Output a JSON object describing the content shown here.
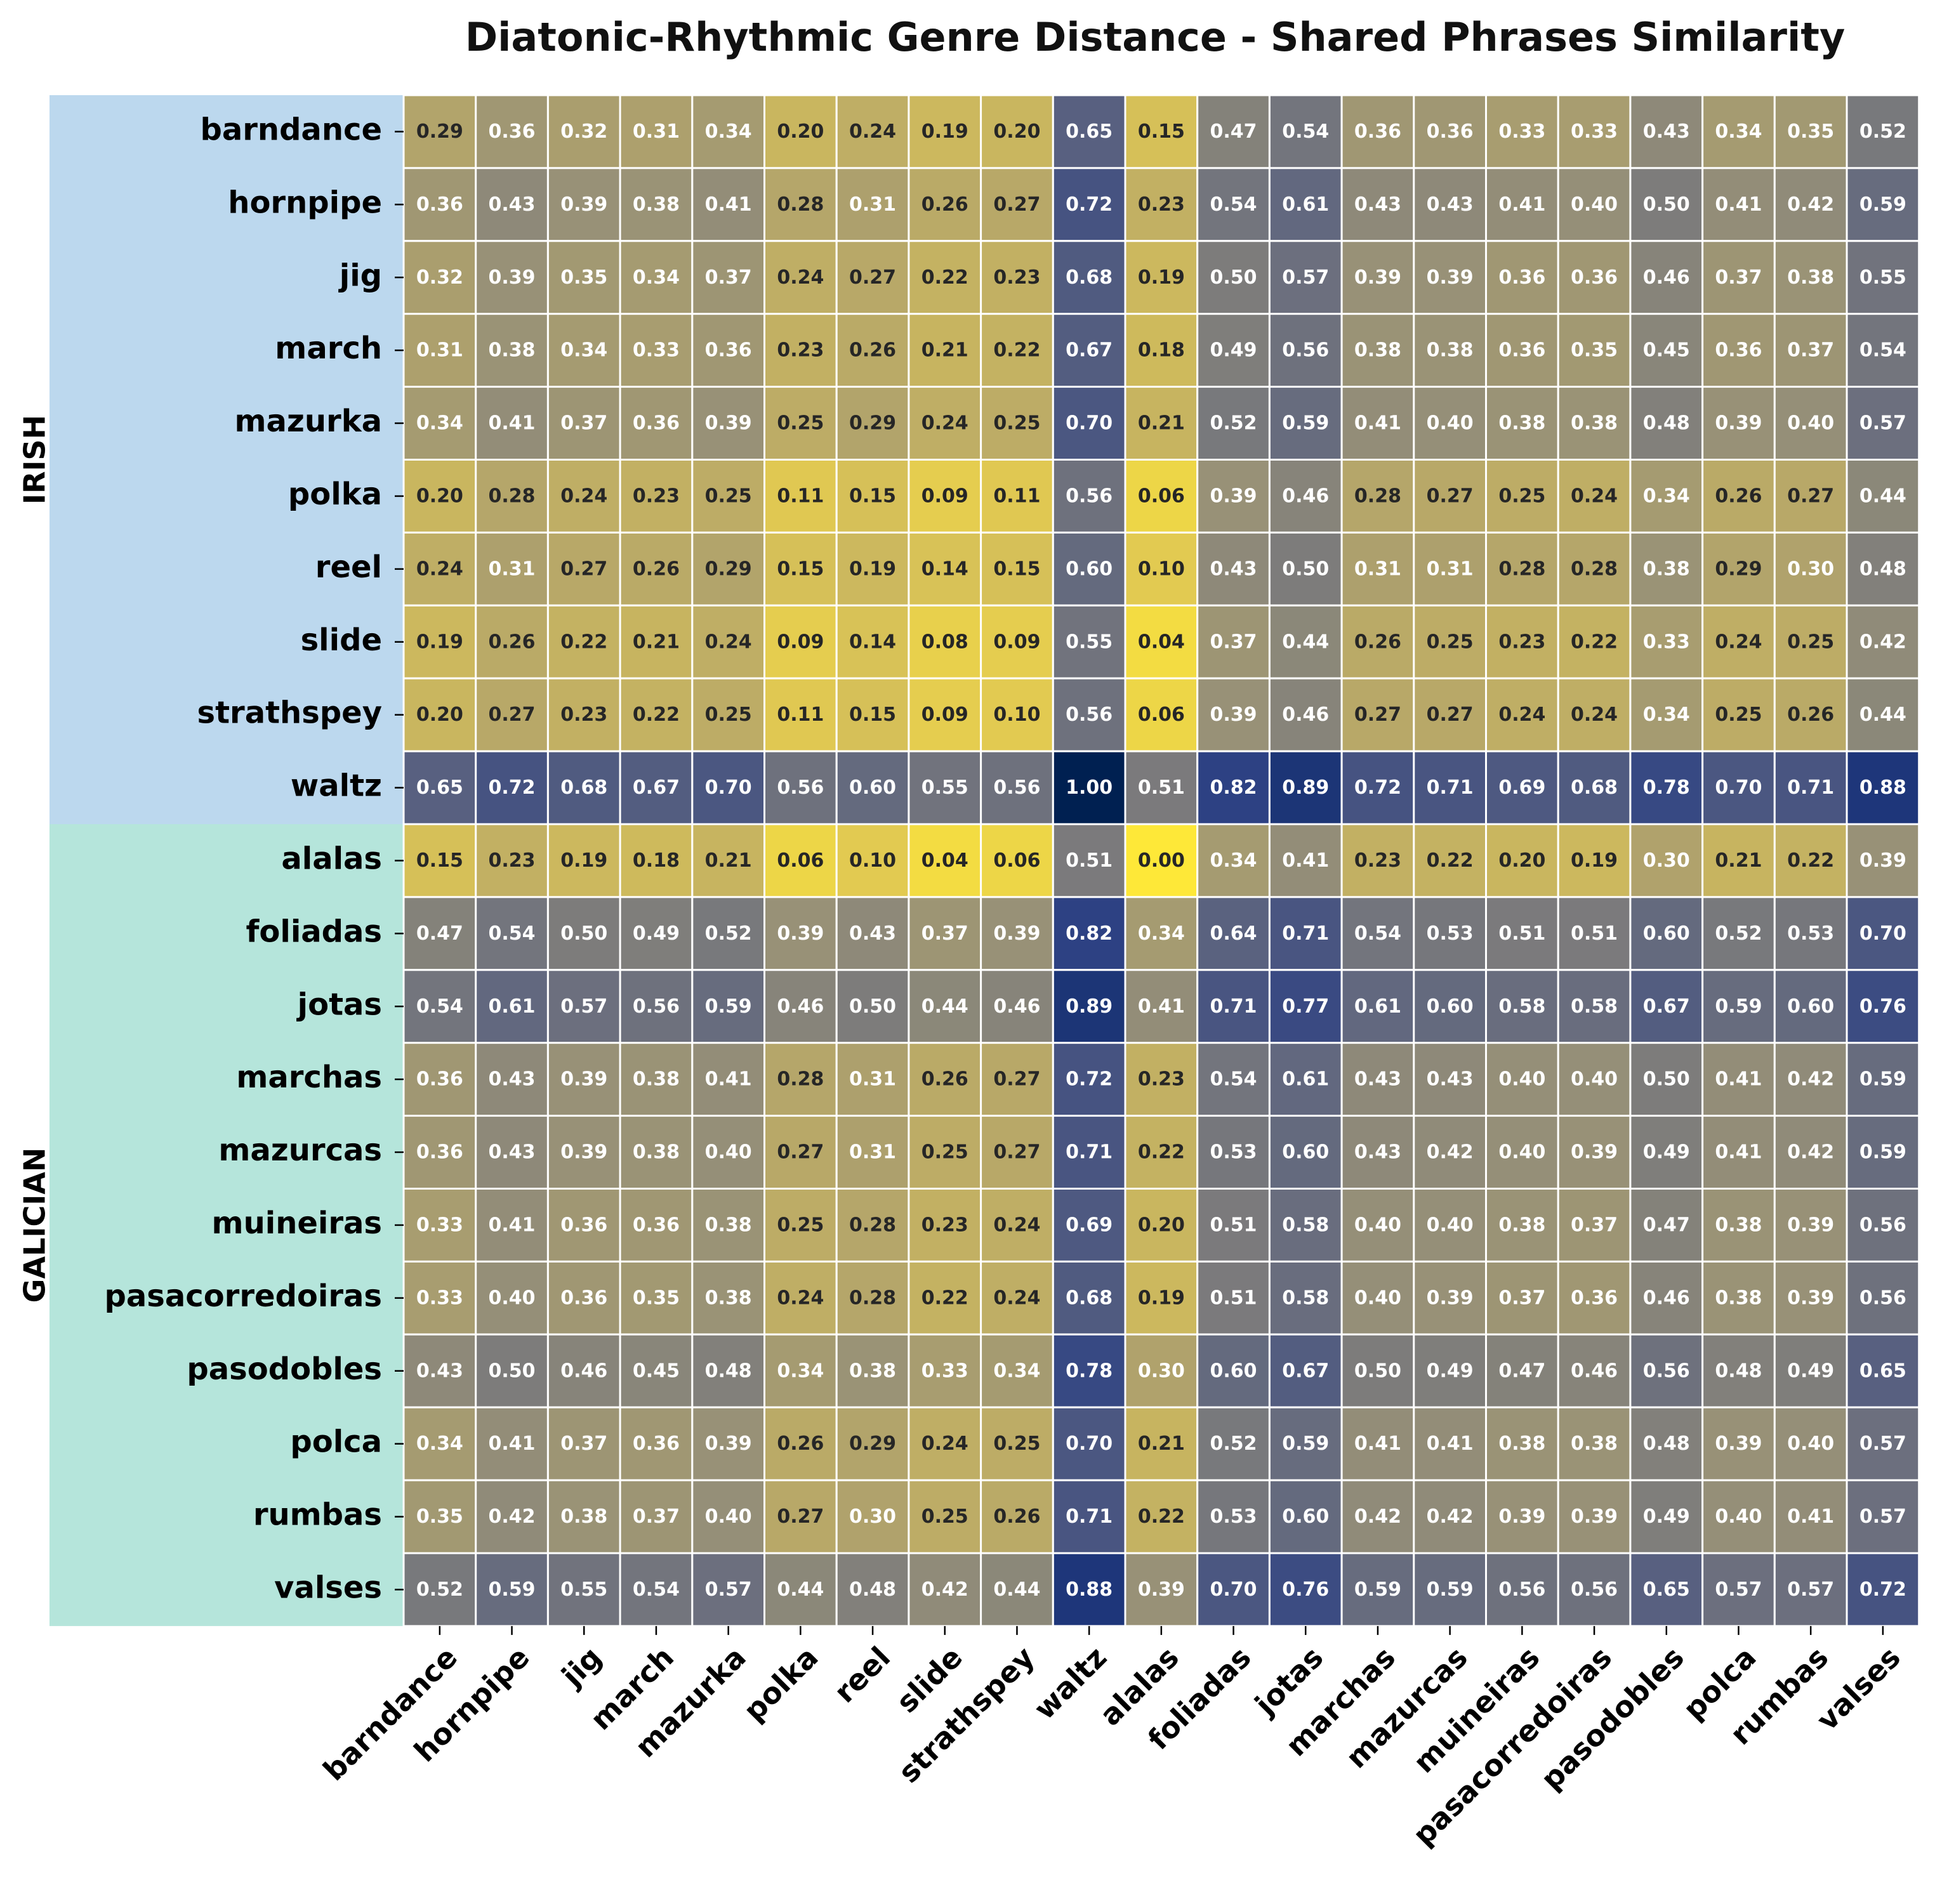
{
  "chart_data": {
    "type": "heatmap",
    "title": "Diatonic-Rhythmic Genre Distance - Shared Phrases Similarity",
    "x_categories": [
      "barndance",
      "hornpipe",
      "jig",
      "march",
      "mazurka",
      "polka",
      "reel",
      "slide",
      "strathspey",
      "waltz",
      "alalas",
      "foliadas",
      "jotas",
      "marchas",
      "mazurcas",
      "muineiras",
      "pasacorredoiras",
      "pasodobles",
      "polca",
      "rumbas",
      "valses"
    ],
    "y_categories": [
      "barndance",
      "hornpipe",
      "jig",
      "march",
      "mazurka",
      "polka",
      "reel",
      "slide",
      "strathspey",
      "waltz",
      "alalas",
      "foliadas",
      "jotas",
      "marchas",
      "mazurcas",
      "muineiras",
      "pasacorredoiras",
      "pasodobles",
      "polca",
      "rumbas",
      "valses"
    ],
    "row_groups": [
      {
        "label": "IRISH",
        "start": 0,
        "end": 9,
        "color": "#bcd8ee"
      },
      {
        "label": "GALICIAN",
        "start": 10,
        "end": 20,
        "color": "#b5e5db"
      }
    ],
    "colormap": "cividis_r",
    "value_range": [
      0,
      1
    ],
    "values": [
      [
        0.29,
        0.36,
        0.32,
        0.31,
        0.34,
        0.2,
        0.24,
        0.19,
        0.2,
        0.65,
        0.15,
        0.47,
        0.54,
        0.36,
        0.36,
        0.33,
        0.33,
        0.43,
        0.34,
        0.35,
        0.52
      ],
      [
        0.36,
        0.43,
        0.39,
        0.38,
        0.41,
        0.28,
        0.31,
        0.26,
        0.27,
        0.72,
        0.23,
        0.54,
        0.61,
        0.43,
        0.43,
        0.41,
        0.4,
        0.5,
        0.41,
        0.42,
        0.59
      ],
      [
        0.32,
        0.39,
        0.35,
        0.34,
        0.37,
        0.24,
        0.27,
        0.22,
        0.23,
        0.68,
        0.19,
        0.5,
        0.57,
        0.39,
        0.39,
        0.36,
        0.36,
        0.46,
        0.37,
        0.38,
        0.55
      ],
      [
        0.31,
        0.38,
        0.34,
        0.33,
        0.36,
        0.23,
        0.26,
        0.21,
        0.22,
        0.67,
        0.18,
        0.49,
        0.56,
        0.38,
        0.38,
        0.36,
        0.35,
        0.45,
        0.36,
        0.37,
        0.54
      ],
      [
        0.34,
        0.41,
        0.37,
        0.36,
        0.39,
        0.25,
        0.29,
        0.24,
        0.25,
        0.7,
        0.21,
        0.52,
        0.59,
        0.41,
        0.4,
        0.38,
        0.38,
        0.48,
        0.39,
        0.4,
        0.57
      ],
      [
        0.2,
        0.28,
        0.24,
        0.23,
        0.25,
        0.11,
        0.15,
        0.09,
        0.11,
        0.56,
        0.06,
        0.39,
        0.46,
        0.28,
        0.27,
        0.25,
        0.24,
        0.34,
        0.26,
        0.27,
        0.44
      ],
      [
        0.24,
        0.31,
        0.27,
        0.26,
        0.29,
        0.15,
        0.19,
        0.14,
        0.15,
        0.6,
        0.1,
        0.43,
        0.5,
        0.31,
        0.31,
        0.28,
        0.28,
        0.38,
        0.29,
        0.3,
        0.48
      ],
      [
        0.19,
        0.26,
        0.22,
        0.21,
        0.24,
        0.09,
        0.14,
        0.08,
        0.09,
        0.55,
        0.04,
        0.37,
        0.44,
        0.26,
        0.25,
        0.23,
        0.22,
        0.33,
        0.24,
        0.25,
        0.42
      ],
      [
        0.2,
        0.27,
        0.23,
        0.22,
        0.25,
        0.11,
        0.15,
        0.09,
        0.1,
        0.56,
        0.06,
        0.39,
        0.46,
        0.27,
        0.27,
        0.24,
        0.24,
        0.34,
        0.25,
        0.26,
        0.44
      ],
      [
        0.65,
        0.72,
        0.68,
        0.67,
        0.7,
        0.56,
        0.6,
        0.55,
        0.56,
        1.0,
        0.51,
        0.82,
        0.89,
        0.72,
        0.71,
        0.69,
        0.68,
        0.78,
        0.7,
        0.71,
        0.88
      ],
      [
        0.15,
        0.23,
        0.19,
        0.18,
        0.21,
        0.06,
        0.1,
        0.04,
        0.06,
        0.51,
        0.0,
        0.34,
        0.41,
        0.23,
        0.22,
        0.2,
        0.19,
        0.3,
        0.21,
        0.22,
        0.39
      ],
      [
        0.47,
        0.54,
        0.5,
        0.49,
        0.52,
        0.39,
        0.43,
        0.37,
        0.39,
        0.82,
        0.34,
        0.64,
        0.71,
        0.54,
        0.53,
        0.51,
        0.51,
        0.6,
        0.52,
        0.53,
        0.7
      ],
      [
        0.54,
        0.61,
        0.57,
        0.56,
        0.59,
        0.46,
        0.5,
        0.44,
        0.46,
        0.89,
        0.41,
        0.71,
        0.77,
        0.61,
        0.6,
        0.58,
        0.58,
        0.67,
        0.59,
        0.6,
        0.76
      ],
      [
        0.36,
        0.43,
        0.39,
        0.38,
        0.41,
        0.28,
        0.31,
        0.26,
        0.27,
        0.72,
        0.23,
        0.54,
        0.61,
        0.43,
        0.43,
        0.4,
        0.4,
        0.5,
        0.41,
        0.42,
        0.59
      ],
      [
        0.36,
        0.43,
        0.39,
        0.38,
        0.4,
        0.27,
        0.31,
        0.25,
        0.27,
        0.71,
        0.22,
        0.53,
        0.6,
        0.43,
        0.42,
        0.4,
        0.39,
        0.49,
        0.41,
        0.42,
        0.59
      ],
      [
        0.33,
        0.41,
        0.36,
        0.36,
        0.38,
        0.25,
        0.28,
        0.23,
        0.24,
        0.69,
        0.2,
        0.51,
        0.58,
        0.4,
        0.4,
        0.38,
        0.37,
        0.47,
        0.38,
        0.39,
        0.56
      ],
      [
        0.33,
        0.4,
        0.36,
        0.35,
        0.38,
        0.24,
        0.28,
        0.22,
        0.24,
        0.68,
        0.19,
        0.51,
        0.58,
        0.4,
        0.39,
        0.37,
        0.36,
        0.46,
        0.38,
        0.39,
        0.56
      ],
      [
        0.43,
        0.5,
        0.46,
        0.45,
        0.48,
        0.34,
        0.38,
        0.33,
        0.34,
        0.78,
        0.3,
        0.6,
        0.67,
        0.5,
        0.49,
        0.47,
        0.46,
        0.56,
        0.48,
        0.49,
        0.65
      ],
      [
        0.34,
        0.41,
        0.37,
        0.36,
        0.39,
        0.26,
        0.29,
        0.24,
        0.25,
        0.7,
        0.21,
        0.52,
        0.59,
        0.41,
        0.41,
        0.38,
        0.38,
        0.48,
        0.39,
        0.4,
        0.57
      ],
      [
        0.35,
        0.42,
        0.38,
        0.37,
        0.4,
        0.27,
        0.3,
        0.25,
        0.26,
        0.71,
        0.22,
        0.53,
        0.6,
        0.42,
        0.42,
        0.39,
        0.39,
        0.49,
        0.4,
        0.41,
        0.57
      ],
      [
        0.52,
        0.59,
        0.55,
        0.54,
        0.57,
        0.44,
        0.48,
        0.42,
        0.44,
        0.88,
        0.39,
        0.7,
        0.76,
        0.59,
        0.59,
        0.56,
        0.56,
        0.65,
        0.57,
        0.57,
        0.72
      ]
    ],
    "grid_lines": "white",
    "legend": "none"
  }
}
